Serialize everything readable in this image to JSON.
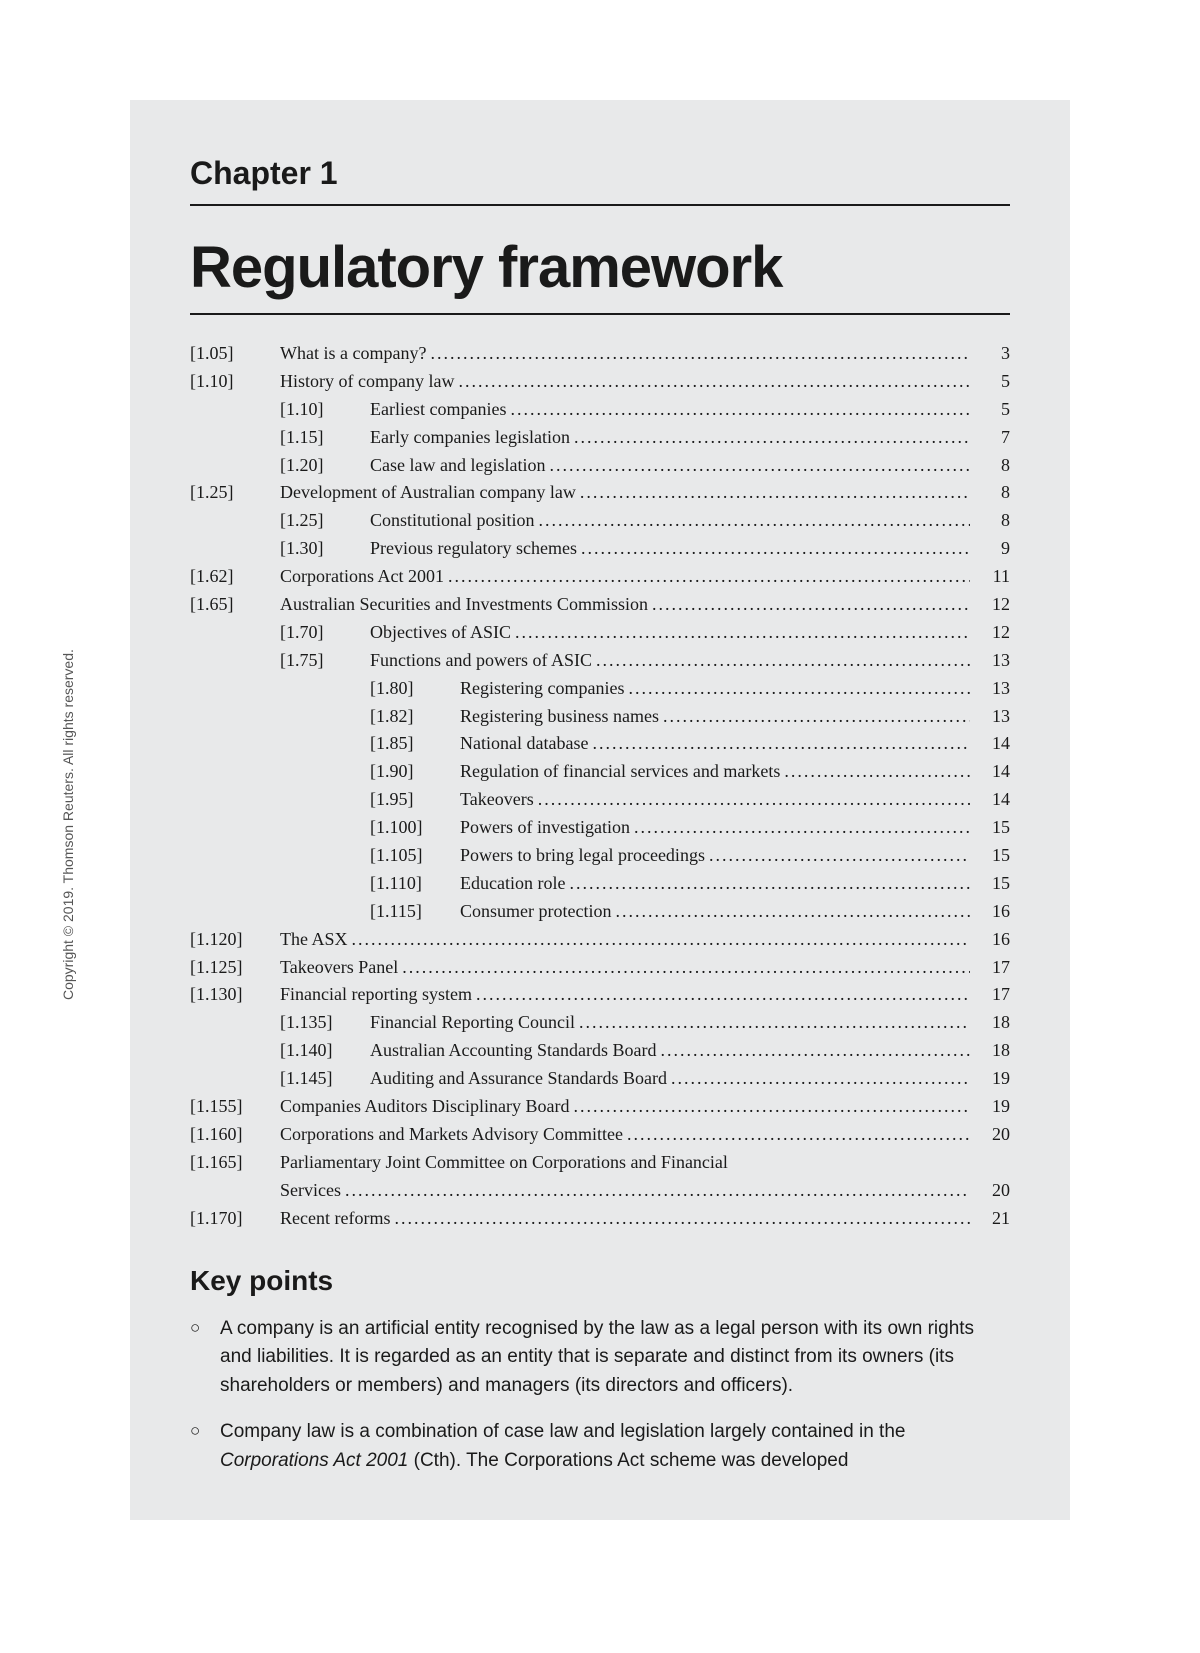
{
  "copyright": "Copyright © 2019. Thomson Reuters. All rights reserved.",
  "chapter": "Chapter 1",
  "title": "Regulatory framework",
  "toc": [
    {
      "ref": "[1.05]",
      "level": 1,
      "label": "What is a company?",
      "page": "3"
    },
    {
      "ref": "[1.10]",
      "level": 1,
      "label": "History of company law",
      "page": "5"
    },
    {
      "ref": "[1.10]",
      "level": 2,
      "label": "Earliest companies",
      "page": "5"
    },
    {
      "ref": "[1.15]",
      "level": 2,
      "label": "Early companies legislation",
      "page": "7"
    },
    {
      "ref": "[1.20]",
      "level": 2,
      "label": "Case law and legislation",
      "page": "8"
    },
    {
      "ref": "[1.25]",
      "level": 1,
      "label": "Development of Australian company law",
      "page": "8"
    },
    {
      "ref": "[1.25]",
      "level": 2,
      "label": "Constitutional position",
      "page": "8"
    },
    {
      "ref": "[1.30]",
      "level": 2,
      "label": "Previous regulatory schemes",
      "page": "9"
    },
    {
      "ref": "[1.62]",
      "level": 1,
      "label": "Corporations Act 2001",
      "page": "11"
    },
    {
      "ref": "[1.65]",
      "level": 1,
      "label": "Australian Securities and Investments Commission",
      "page": "12"
    },
    {
      "ref": "[1.70]",
      "level": 2,
      "label": "Objectives of ASIC",
      "page": "12"
    },
    {
      "ref": "[1.75]",
      "level": 2,
      "label": "Functions and powers of ASIC",
      "page": "13"
    },
    {
      "ref": "[1.80]",
      "level": 3,
      "label": "Registering companies",
      "page": "13"
    },
    {
      "ref": "[1.82]",
      "level": 3,
      "label": "Registering business names",
      "page": "13"
    },
    {
      "ref": "[1.85]",
      "level": 3,
      "label": "National database",
      "page": "14"
    },
    {
      "ref": "[1.90]",
      "level": 3,
      "label": "Regulation of financial services and markets",
      "page": "14"
    },
    {
      "ref": "[1.95]",
      "level": 3,
      "label": "Takeovers",
      "page": "14"
    },
    {
      "ref": "[1.100]",
      "level": 3,
      "label": "Powers of investigation",
      "page": "15"
    },
    {
      "ref": "[1.105]",
      "level": 3,
      "label": "Powers to bring legal proceedings",
      "page": "15"
    },
    {
      "ref": "[1.110]",
      "level": 3,
      "label": "Education role",
      "page": "15"
    },
    {
      "ref": "[1.115]",
      "level": 3,
      "label": "Consumer protection",
      "page": "16"
    },
    {
      "ref": "[1.120]",
      "level": 1,
      "label": "The ASX",
      "page": "16"
    },
    {
      "ref": "[1.125]",
      "level": 1,
      "label": "Takeovers Panel",
      "page": "17"
    },
    {
      "ref": "[1.130]",
      "level": 1,
      "label": "Financial reporting system",
      "page": "17"
    },
    {
      "ref": "[1.135]",
      "level": 2,
      "label": "Financial Reporting Council",
      "page": "18"
    },
    {
      "ref": "[1.140]",
      "level": 2,
      "label": "Australian Accounting Standards Board",
      "page": "18"
    },
    {
      "ref": "[1.145]",
      "level": 2,
      "label": "Auditing and Assurance Standards Board",
      "page": "19"
    },
    {
      "ref": "[1.155]",
      "level": 1,
      "label": "Companies Auditors Disciplinary Board",
      "page": "19"
    },
    {
      "ref": "[1.160]",
      "level": 1,
      "label": "Corporations and Markets Advisory Committee",
      "page": "20"
    },
    {
      "ref": "[1.165]",
      "level": 1,
      "label": "Parliamentary Joint Committee on Corporations and Financial",
      "label2": "Services",
      "page": "20"
    },
    {
      "ref": "[1.170]",
      "level": 1,
      "label": "Recent reforms",
      "page": "21"
    }
  ],
  "keypoints_heading": "Key points",
  "keypoints": [
    {
      "bullet": "○",
      "text": "A company is an artificial entity recognised by the law as a legal person with its own rights and liabilities. It is regarded as an entity that is separate and distinct from its owners (its shareholders or members) and managers (its directors and officers)."
    },
    {
      "bullet": "○",
      "html": "Company law is a combination of case law and legislation largely contained in the <em>Corporations Act 2001</em> (Cth). The Corporations Act scheme was developed"
    }
  ]
}
